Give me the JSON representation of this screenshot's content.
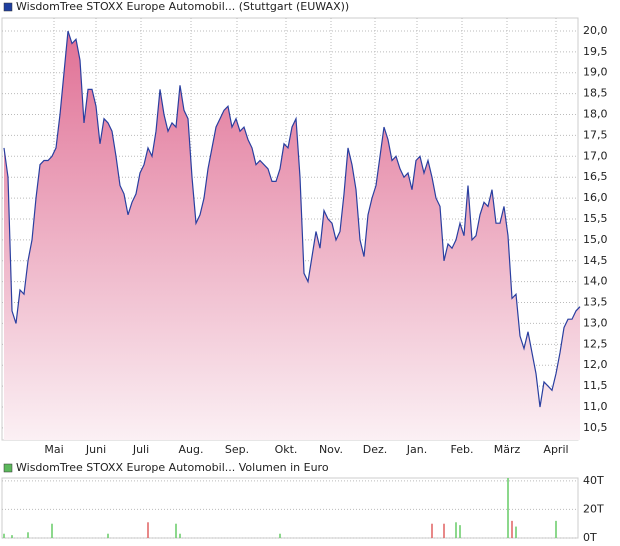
{
  "chart_data": [
    {
      "type": "area",
      "legend": "WisdomTree STOXX Europe Automobil... (Stuttgart (EUWAX))",
      "legend_color": "#1f3f9f",
      "color": "#2a3fa0",
      "fill_top": "#e07095",
      "fill_bottom": "#fbf0f4",
      "values": [
        17.2,
        16.5,
        13.3,
        13.0,
        13.8,
        13.7,
        14.5,
        15.0,
        16.0,
        16.8,
        16.9,
        16.9,
        17.0,
        17.2,
        18.0,
        19.0,
        20.0,
        19.7,
        19.8,
        19.3,
        17.8,
        18.6,
        18.6,
        18.2,
        17.3,
        17.9,
        17.8,
        17.6,
        17.0,
        16.3,
        16.1,
        15.6,
        15.9,
        16.1,
        16.6,
        16.8,
        17.2,
        17.0,
        17.6,
        18.6,
        18.0,
        17.6,
        17.8,
        17.7,
        18.7,
        18.1,
        17.9,
        16.5,
        15.4,
        15.6,
        16.0,
        16.7,
        17.2,
        17.7,
        17.9,
        18.1,
        18.2,
        17.7,
        17.9,
        17.6,
        17.7,
        17.4,
        17.2,
        16.8,
        16.9,
        16.8,
        16.7,
        16.4,
        16.4,
        16.7,
        17.3,
        17.2,
        17.7,
        17.9,
        16.5,
        14.2,
        14.0,
        14.6,
        15.2,
        14.8,
        15.7,
        15.5,
        15.4,
        15.0,
        15.2,
        16.1,
        17.2,
        16.8,
        16.2,
        15.0,
        14.6,
        15.6,
        16.0,
        16.3,
        17.0,
        17.7,
        17.4,
        16.9,
        17.0,
        16.7,
        16.5,
        16.6,
        16.2,
        16.9,
        17.0,
        16.6,
        16.9,
        16.5,
        16.0,
        15.8,
        14.5,
        14.9,
        14.8,
        15.0,
        15.4,
        15.1,
        16.3,
        15.0,
        15.1,
        15.6,
        15.9,
        15.8,
        16.2,
        15.4,
        15.4,
        15.8,
        15.1,
        13.6,
        13.7,
        12.7,
        12.4,
        12.8,
        12.3,
        11.8,
        11.0,
        11.6,
        11.5,
        11.4,
        11.8,
        12.3,
        12.9,
        13.1,
        13.1,
        13.3,
        13.4
      ],
      "xlim": [
        -0.5,
        143.5
      ],
      "xticks": [
        {
          "value": 12.5,
          "label": "Mai"
        },
        {
          "value": 23,
          "label": "Juni"
        },
        {
          "value": 34.25,
          "label": "Juli"
        },
        {
          "value": 46.75,
          "label": "Aug."
        },
        {
          "value": 58.25,
          "label": "Sep."
        },
        {
          "value": 70.5,
          "label": "Okt."
        },
        {
          "value": 81.75,
          "label": "Nov."
        },
        {
          "value": 92.75,
          "label": "Dez."
        },
        {
          "value": 103.25,
          "label": "Jan."
        },
        {
          "value": 114.5,
          "label": "Feb."
        },
        {
          "value": 125.75,
          "label": "März"
        },
        {
          "value": 138,
          "label": "April"
        }
      ],
      "ylim": [
        10.21,
        20.31
      ],
      "yticks": [
        {
          "value": 10.5,
          "label": "10,5"
        },
        {
          "value": 11,
          "label": "11,0"
        },
        {
          "value": 11.5,
          "label": "11,5"
        },
        {
          "value": 12,
          "label": "12,0"
        },
        {
          "value": 12.5,
          "label": "12,5"
        },
        {
          "value": 13,
          "label": "13,0"
        },
        {
          "value": 13.5,
          "label": "13,5"
        },
        {
          "value": 14,
          "label": "14,0"
        },
        {
          "value": 14.5,
          "label": "14,5"
        },
        {
          "value": 15,
          "label": "15,0"
        },
        {
          "value": 15.5,
          "label": "15,5"
        },
        {
          "value": 16,
          "label": "16,0"
        },
        {
          "value": 16.5,
          "label": "16,5"
        },
        {
          "value": 17,
          "label": "17,0"
        },
        {
          "value": 17.5,
          "label": "17,5"
        },
        {
          "value": 18,
          "label": "18,0"
        },
        {
          "value": 18.5,
          "label": "18,5"
        },
        {
          "value": 19,
          "label": "19,0"
        },
        {
          "value": 19.5,
          "label": "19,5"
        },
        {
          "value": 20,
          "label": "20,0"
        }
      ],
      "grid": true
    },
    {
      "type": "bar",
      "legend": "WisdomTree STOXX Europe Automobil... Volumen in Euro",
      "legend_color": "#5cb85c",
      "x": [
        0,
        2,
        6,
        12,
        26,
        36,
        43,
        44,
        69,
        107,
        110,
        113,
        114,
        126,
        127,
        128,
        138
      ],
      "values": [
        3,
        2,
        4,
        10,
        3,
        11,
        10,
        3,
        3,
        10,
        10,
        11,
        9,
        42,
        12,
        8,
        12
      ],
      "colors": [
        "#66cc66",
        "#66cc66",
        "#66cc66",
        "#66cc66",
        "#66cc66",
        "#e06060",
        "#66cc66",
        "#66cc66",
        "#66cc66",
        "#e06060",
        "#e06060",
        "#66cc66",
        "#66cc66",
        "#66cc66",
        "#e06060",
        "#66cc66",
        "#66cc66"
      ],
      "xlim": [
        -0.5,
        143.5
      ],
      "ylim": [
        0,
        42
      ],
      "yticks": [
        {
          "value": 0,
          "label": "0T"
        },
        {
          "value": 20,
          "label": "20T"
        },
        {
          "value": 40,
          "label": "40T"
        }
      ],
      "grid": true
    }
  ]
}
